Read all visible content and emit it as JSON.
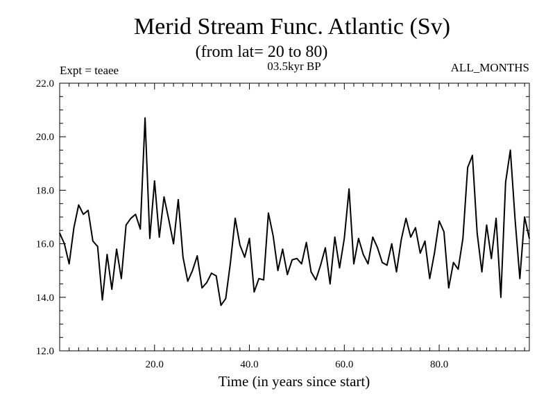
{
  "chart_data": {
    "type": "line",
    "title": "Merid Stream Func. Atlantic (Sv)",
    "subtitle": "(from lat= 20 to 80)",
    "left_label": "Expt = teaee",
    "center_label": "03.5kyr BP",
    "right_label": "ALL_MONTHS",
    "xlabel": "Time (in years since start)",
    "ylabel": "",
    "xlim": [
      0,
      99
    ],
    "ylim": [
      12.0,
      22.0
    ],
    "xticks": [
      20,
      40,
      60,
      80
    ],
    "xtick_labels": [
      "20.0",
      "40.0",
      "60.0",
      "80.0"
    ],
    "yticks": [
      12,
      14,
      16,
      18,
      20,
      22
    ],
    "ytick_labels": [
      "12.0",
      "14.0",
      "16.0",
      "18.0",
      "20.0",
      "22.0"
    ],
    "grid": false,
    "series": [
      {
        "name": "Merid Stream Func.",
        "x": [
          0,
          1,
          2,
          3,
          4,
          5,
          6,
          7,
          8,
          9,
          10,
          11,
          12,
          13,
          14,
          15,
          16,
          17,
          18,
          19,
          20,
          21,
          22,
          23,
          24,
          25,
          26,
          27,
          28,
          29,
          30,
          31,
          32,
          33,
          34,
          35,
          36,
          37,
          38,
          39,
          40,
          41,
          42,
          43,
          44,
          45,
          46,
          47,
          48,
          49,
          50,
          51,
          52,
          53,
          54,
          55,
          56,
          57,
          58,
          59,
          60,
          61,
          62,
          63,
          64,
          65,
          66,
          67,
          68,
          69,
          70,
          71,
          72,
          73,
          74,
          75,
          76,
          77,
          78,
          79,
          80,
          81,
          82,
          83,
          84,
          85,
          86,
          87,
          88,
          89,
          90,
          91,
          92,
          93,
          94,
          95,
          96,
          97,
          98,
          99
        ],
        "values": [
          16.4,
          16.0,
          15.25,
          16.6,
          17.45,
          17.1,
          17.25,
          16.1,
          15.9,
          13.9,
          15.6,
          14.3,
          15.8,
          14.7,
          16.7,
          16.95,
          17.1,
          16.55,
          20.7,
          16.2,
          18.35,
          16.25,
          17.75,
          16.9,
          16.0,
          17.65,
          15.5,
          14.6,
          15.0,
          15.55,
          14.35,
          14.55,
          14.9,
          14.8,
          13.7,
          13.95,
          15.3,
          16.95,
          15.95,
          15.5,
          16.2,
          14.2,
          14.7,
          14.65,
          17.15,
          16.3,
          15.0,
          15.8,
          14.85,
          15.4,
          15.45,
          15.25,
          16.05,
          14.95,
          14.65,
          15.2,
          15.85,
          14.5,
          16.25,
          15.1,
          16.2,
          18.05,
          15.25,
          16.2,
          15.6,
          15.25,
          16.25,
          15.85,
          15.3,
          15.2,
          16.0,
          14.95,
          16.15,
          16.95,
          16.25,
          16.6,
          15.65,
          16.1,
          14.7,
          15.65,
          16.85,
          16.45,
          14.35,
          15.3,
          15.05,
          16.2,
          18.85,
          19.3,
          16.4,
          14.95,
          16.7,
          15.45,
          16.95,
          14.0,
          18.3,
          19.5,
          16.9,
          14.7,
          17.0,
          16.2
        ]
      }
    ]
  }
}
